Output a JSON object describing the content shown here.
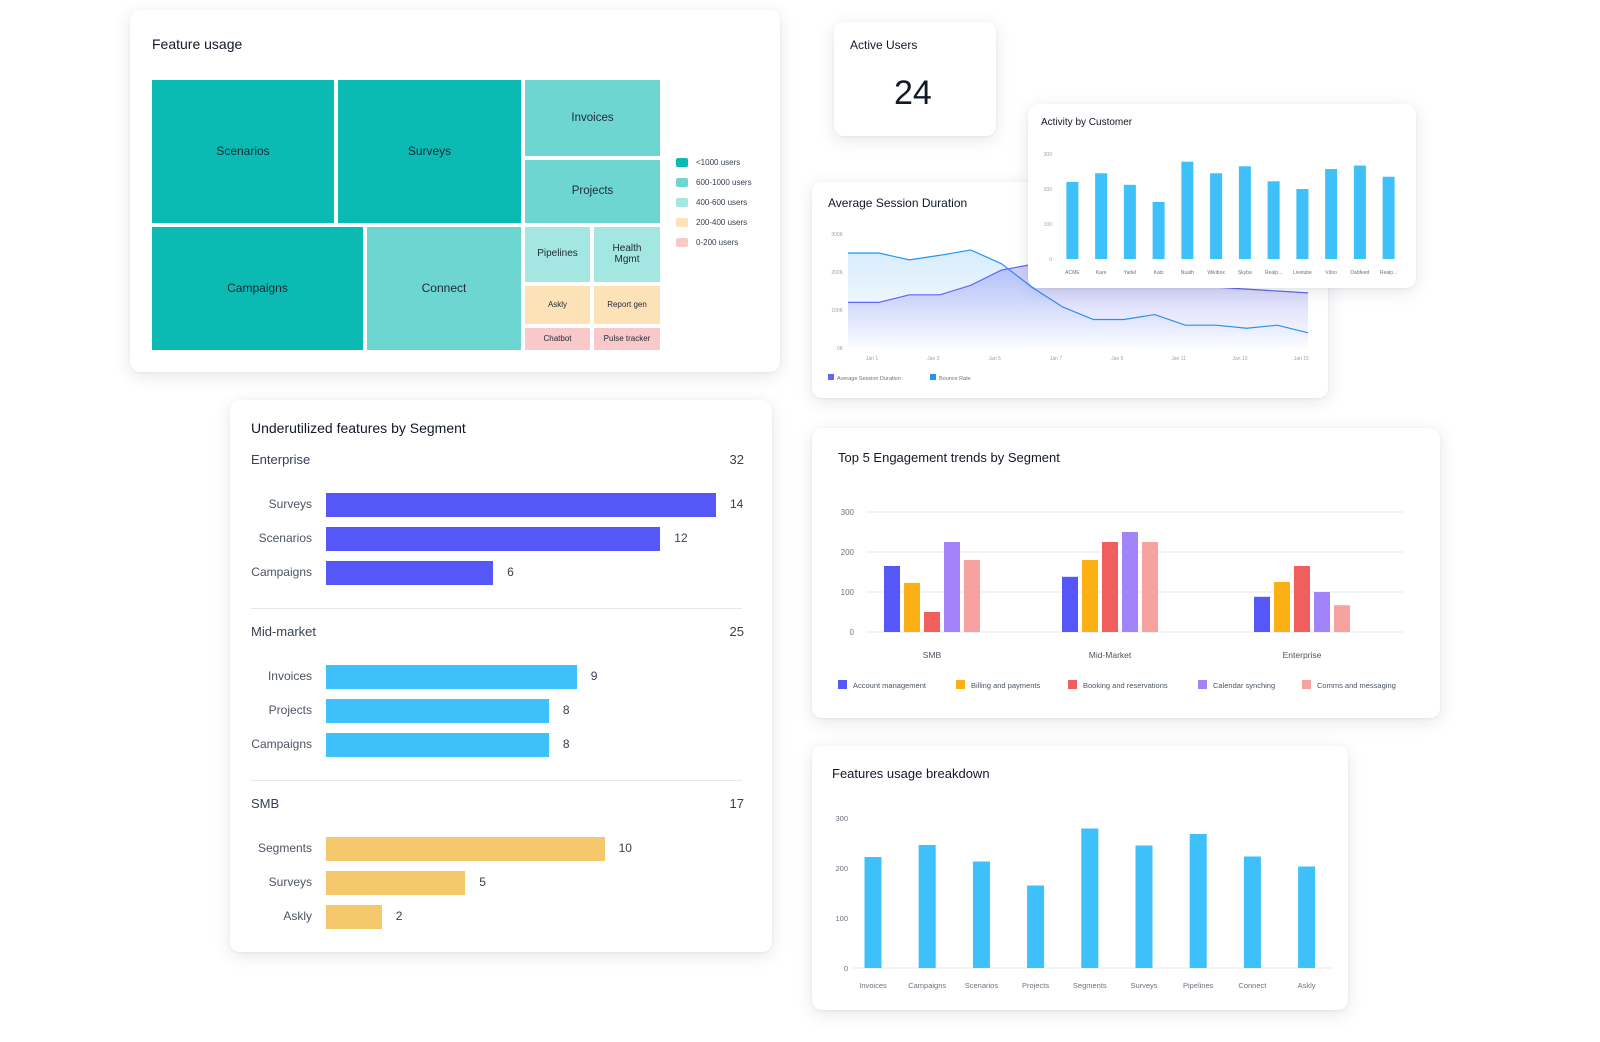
{
  "feature_usage": {
    "title": "Feature usage",
    "cells": [
      {
        "label": "Scenarios",
        "tier": 0
      },
      {
        "label": "Surveys",
        "tier": 0
      },
      {
        "label": "Campaigns",
        "tier": 0
      },
      {
        "label": "Connect",
        "tier": 1
      },
      {
        "label": "Invoices",
        "tier": 1
      },
      {
        "label": "Projects",
        "tier": 1
      },
      {
        "label": "Pipelines",
        "tier": 2
      },
      {
        "label": "Health Mgmt",
        "tier": 2
      },
      {
        "label": "Askly",
        "tier": 3
      },
      {
        "label": "Report gen",
        "tier": 3
      },
      {
        "label": "Chatbot",
        "tier": 4
      },
      {
        "label": "Pulse tracker",
        "tier": 4
      }
    ],
    "legend": [
      {
        "label": "<1000 users",
        "color": "#0bbab3"
      },
      {
        "label": "600-1000 users",
        "color": "#6dd6d1"
      },
      {
        "label": "400-600 users",
        "color": "#a4e6e2"
      },
      {
        "label": "200-400 users",
        "color": "#fde2b8"
      },
      {
        "label": "0-200 users",
        "color": "#f9c9c9"
      }
    ]
  },
  "active_users": {
    "title": "Active Users",
    "value": "24"
  },
  "activity_by_customer": {
    "title": "Activity by Customer",
    "color": "#3ec0fb"
  },
  "avg_session": {
    "title": "Average Session Duration",
    "legend": [
      {
        "label": "Average Session Duration",
        "color": "#6366f1"
      },
      {
        "label": "Bounce Rate",
        "color": "#2196f3"
      }
    ]
  },
  "underutilized": {
    "title": "Underutilized features by Segment",
    "segments": [
      {
        "name": "Enterprise",
        "total": "32",
        "color": "#5558f6",
        "bars": [
          {
            "label": "Surveys",
            "value": 14
          },
          {
            "label": "Scenarios",
            "value": 12
          },
          {
            "label": "Campaigns",
            "value": 6
          }
        ]
      },
      {
        "name": "Mid-market",
        "total": "25",
        "color": "#3ec0fb",
        "bars": [
          {
            "label": "Invoices",
            "value": 9
          },
          {
            "label": "Projects",
            "value": 8
          },
          {
            "label": "Campaigns",
            "value": 8
          }
        ]
      },
      {
        "name": "SMB",
        "total": "17",
        "color": "#f6c86e",
        "bars": [
          {
            "label": "Segments",
            "value": 10
          },
          {
            "label": "Surveys",
            "value": 5
          },
          {
            "label": "Askly",
            "value": 2
          }
        ]
      }
    ]
  },
  "engagement": {
    "title": "Top 5 Engagement trends by Segment"
  },
  "breakdown": {
    "title": "Features usage breakdown",
    "color": "#3ec0fb"
  },
  "chart_data": [
    {
      "id": "activity_by_customer",
      "type": "bar",
      "title": "Activity by Customer",
      "categories": [
        "ACME",
        "Kare",
        "Yadel",
        "Katz",
        "Nuath",
        "Wikibox",
        "Skyba",
        "Realp...",
        "Livetube",
        "Vdoo",
        "Dabfeed",
        "Realp..."
      ],
      "values": [
        220,
        245,
        212,
        163,
        278,
        245,
        265,
        222,
        200,
        257,
        267,
        235
      ],
      "ylim": [
        0,
        300
      ],
      "yticks": [
        "0",
        "100",
        "200",
        "300"
      ],
      "xlabel": "",
      "ylabel": ""
    },
    {
      "id": "avg_session",
      "type": "area",
      "title": "Average Session Duration",
      "x": [
        "Jan 1",
        "Jan 2",
        "Jan 3",
        "Jan 4",
        "Jan 5",
        "Jan 6",
        "Jan 7",
        "Jan 8",
        "Jan 9",
        "Jan 10",
        "Jan 11",
        "Jan 12",
        "Jan 13",
        "Jan 14",
        "Jan 15",
        "Jan 16"
      ],
      "xticks": [
        "Jan 1",
        "Jan 3",
        "Jan 5",
        "Jan 7",
        "Jan 9",
        "Jan 11",
        "Jan 13",
        "Jan 15"
      ],
      "yticks": [
        "0K",
        "100K",
        "200K",
        "300K"
      ],
      "ylim": [
        0,
        300000
      ],
      "series": [
        {
          "name": "Average Session Duration",
          "values": [
            120000,
            120000,
            140000,
            140000,
            165000,
            205000,
            220000,
            210000,
            195000,
            185000,
            170000,
            165000,
            160000,
            155000,
            150000,
            145000
          ]
        },
        {
          "name": "Bounce Rate",
          "values": [
            250000,
            250000,
            232000,
            244000,
            258000,
            222000,
            160000,
            108000,
            75000,
            75000,
            88000,
            60000,
            60000,
            52000,
            60000,
            40000
          ]
        }
      ]
    },
    {
      "id": "engagement",
      "type": "bar",
      "title": "Top 5 Engagement trends by Segment",
      "categories": [
        "SMB",
        "Mid-Market",
        "Enterprise"
      ],
      "ylim": [
        0,
        300
      ],
      "yticks": [
        "0",
        "100",
        "200",
        "300"
      ],
      "series": [
        {
          "name": "Account management",
          "color": "#5558f6",
          "values": [
            165,
            138,
            88
          ]
        },
        {
          "name": "Billing and payments",
          "color": "#fbb116",
          "values": [
            123,
            180,
            125
          ]
        },
        {
          "name": "Booking and reservations",
          "color": "#f05e5e",
          "values": [
            50,
            225,
            165
          ]
        },
        {
          "name": "Calendar synching",
          "color": "#a383f8",
          "values": [
            225,
            250,
            100
          ]
        },
        {
          "name": "Comms and messaging",
          "color": "#f8a1a1",
          "values": [
            180,
            225,
            67
          ]
        }
      ]
    },
    {
      "id": "breakdown",
      "type": "bar",
      "title": "Features usage breakdown",
      "categories": [
        "Invoices",
        "Campaigns",
        "Scenarios",
        "Projects",
        "Segments",
        "Surveys",
        "Pipelines",
        "Connect",
        "Askly"
      ],
      "values": [
        222,
        246,
        213,
        165,
        279,
        245,
        268,
        223,
        203
      ],
      "ylim": [
        0,
        300
      ],
      "yticks": [
        "0",
        "100",
        "200",
        "300"
      ]
    }
  ]
}
